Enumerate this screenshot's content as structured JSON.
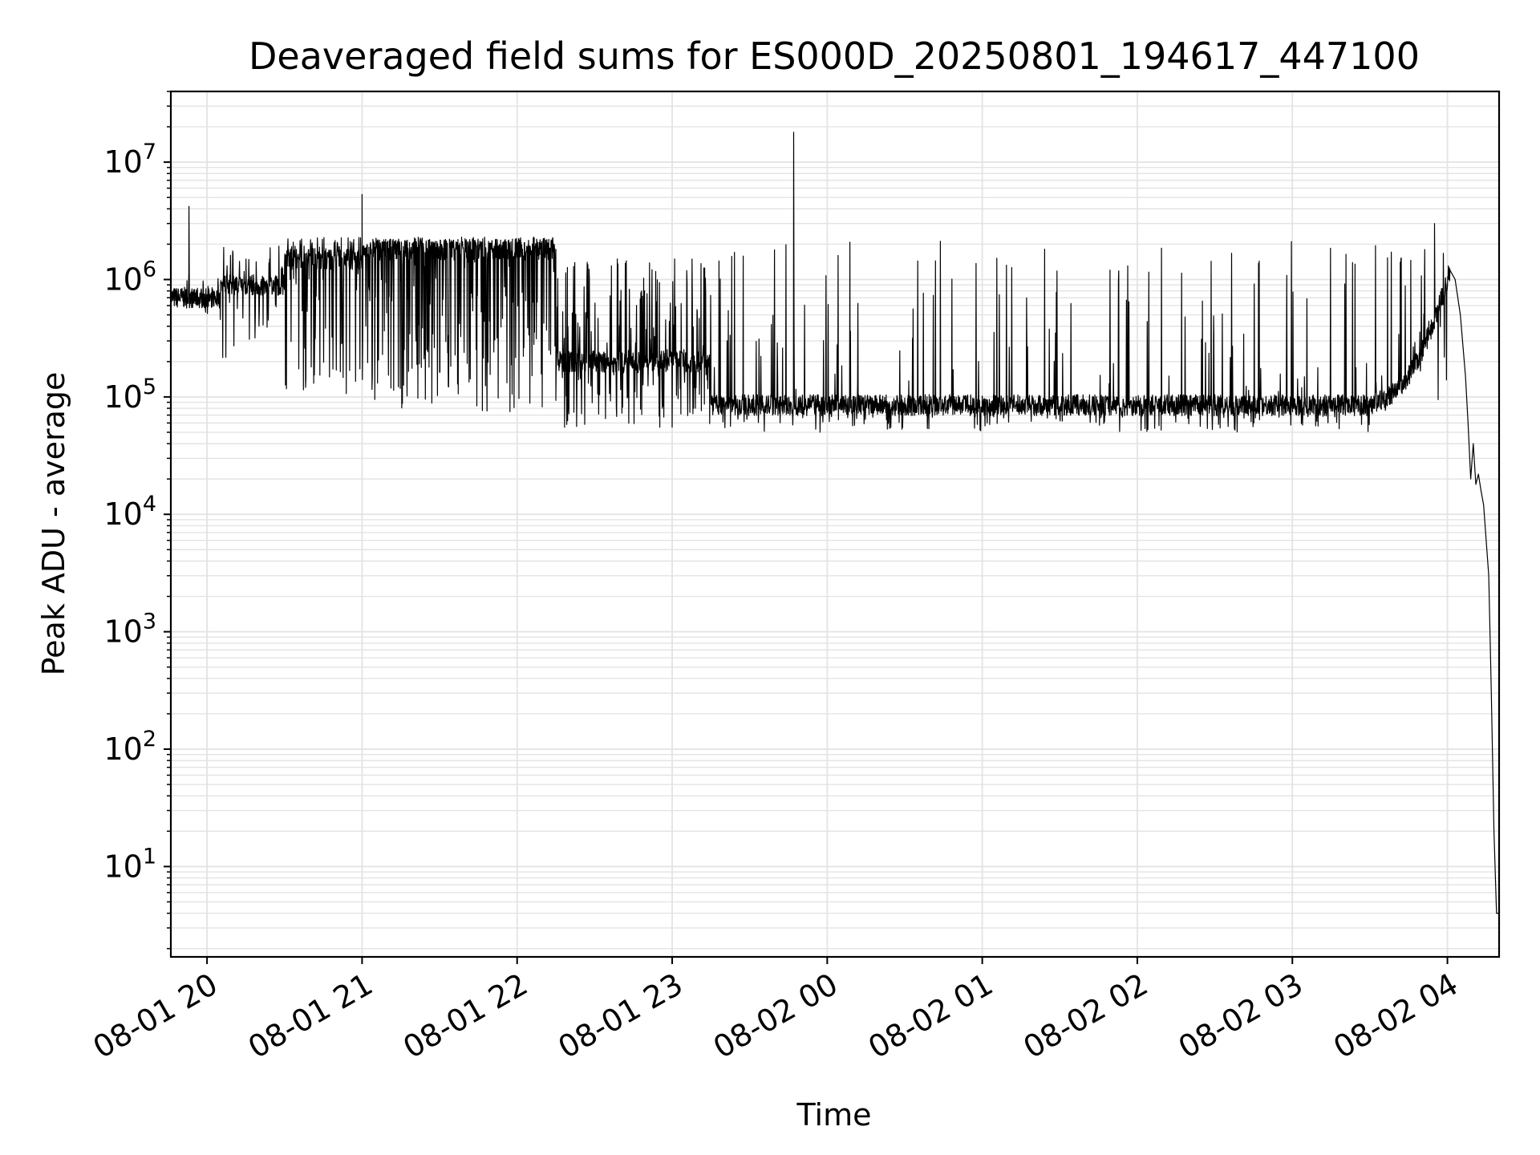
{
  "chart_data": {
    "type": "line",
    "title": "Deaveraged field sums for ES000D_20250801_194617_447100",
    "xlabel": "Time",
    "ylabel": "Peak ADU - average",
    "yscale": "log",
    "grid": true,
    "legend": "none",
    "line_color": "#000000",
    "grid_color": "#e3e3e3",
    "ylim": [
      1.7,
      40000000
    ],
    "xlim": [
      "2025-08-01 19:46",
      "2025-08-02 04:20"
    ],
    "y_ticks": [
      {
        "base": "10",
        "exp": "1",
        "value": 10
      },
      {
        "base": "10",
        "exp": "2",
        "value": 100
      },
      {
        "base": "10",
        "exp": "3",
        "value": 1000
      },
      {
        "base": "10",
        "exp": "4",
        "value": 10000
      },
      {
        "base": "10",
        "exp": "5",
        "value": 100000
      },
      {
        "base": "10",
        "exp": "6",
        "value": 1000000
      },
      {
        "base": "10",
        "exp": "7",
        "value": 10000000
      }
    ],
    "x_ticks": [
      {
        "label": "08-01 20",
        "time": "2025-08-01 20:00"
      },
      {
        "label": "08-01 21",
        "time": "2025-08-01 21:00"
      },
      {
        "label": "08-01 22",
        "time": "2025-08-01 22:00"
      },
      {
        "label": "08-01 23",
        "time": "2025-08-01 23:00"
      },
      {
        "label": "08-02 00",
        "time": "2025-08-02 00:00"
      },
      {
        "label": "08-02 01",
        "time": "2025-08-02 01:00"
      },
      {
        "label": "08-02 02",
        "time": "2025-08-02 02:00"
      },
      {
        "label": "08-02 03",
        "time": "2025-08-02 03:00"
      },
      {
        "label": "08-02 04",
        "time": "2025-08-02 04:00"
      }
    ],
    "segments": [
      {
        "start": "2025-08-01 19:46",
        "end": "2025-08-01 20:05",
        "base": 700000,
        "spike_max": 1200000,
        "dip_min": 500000,
        "spike_prob": 0.1,
        "dip_prob": 0.08
      },
      {
        "start": "2025-08-01 20:05",
        "end": "2025-08-01 20:30",
        "base": 900000,
        "spike_max": 2000000,
        "dip_min": 200000,
        "spike_prob": 0.25,
        "dip_prob": 0.2
      },
      {
        "start": "2025-08-01 20:30",
        "end": "2025-08-01 21:00",
        "base": 1500000,
        "spike_max": 2300000,
        "dip_min": 100000,
        "spike_prob": 0.45,
        "dip_prob": 0.45
      },
      {
        "start": "2025-08-01 21:00",
        "end": "2025-08-01 22:15",
        "base": 1800000,
        "spike_max": 2300000,
        "dip_min": 75000,
        "spike_prob": 0.55,
        "dip_prob": 0.55
      },
      {
        "start": "2025-08-01 22:15",
        "end": "2025-08-01 23:15",
        "base": 200000,
        "spike_max": 1500000,
        "dip_min": 55000,
        "spike_prob": 0.45,
        "dip_prob": 0.4
      },
      {
        "start": "2025-08-01 23:15",
        "end": "2025-08-02 03:30",
        "base": 85000,
        "spike_max": 2200000,
        "dip_min": 50000,
        "spike_prob": 0.12,
        "dip_prob": 0.15
      },
      {
        "start": "2025-08-02 03:30",
        "end": "2025-08-02 04:01",
        "base": 90000,
        "spike_max": 2000000,
        "dip_min": 70000,
        "spike_prob": 0.18,
        "dip_prob": 0.1,
        "ramp_to": 1200000
      }
    ],
    "spikes": [
      {
        "time": "2025-08-01 19:53",
        "value": 4200000
      },
      {
        "time": "2025-08-01 21:00",
        "value": 5300000
      },
      {
        "time": "2025-08-01 23:47",
        "value": 18000000
      },
      {
        "time": "2025-08-02 03:55",
        "value": 3000000
      }
    ],
    "falloff": [
      {
        "time": "2025-08-02 04:01",
        "value": 1200000
      },
      {
        "time": "2025-08-02 04:03",
        "value": 1000000
      },
      {
        "time": "2025-08-02 04:05",
        "value": 500000
      },
      {
        "time": "2025-08-02 04:07",
        "value": 150000
      },
      {
        "time": "2025-08-02 04:08",
        "value": 60000
      },
      {
        "time": "2025-08-02 04:09",
        "value": 20000
      },
      {
        "time": "2025-08-02 04:10",
        "value": 40000
      },
      {
        "time": "2025-08-02 04:11",
        "value": 18000
      },
      {
        "time": "2025-08-02 04:12",
        "value": 22000
      },
      {
        "time": "2025-08-02 04:13",
        "value": 16000
      },
      {
        "time": "2025-08-02 04:14",
        "value": 12000
      },
      {
        "time": "2025-08-02 04:15",
        "value": 6000
      },
      {
        "time": "2025-08-02 04:16",
        "value": 3000
      },
      {
        "time": "2025-08-02 04:17",
        "value": 300
      },
      {
        "time": "2025-08-02 04:18",
        "value": 20
      },
      {
        "time": "2025-08-02 04:19",
        "value": 4
      },
      {
        "time": "2025-08-02 04:20",
        "value": 4
      }
    ]
  }
}
